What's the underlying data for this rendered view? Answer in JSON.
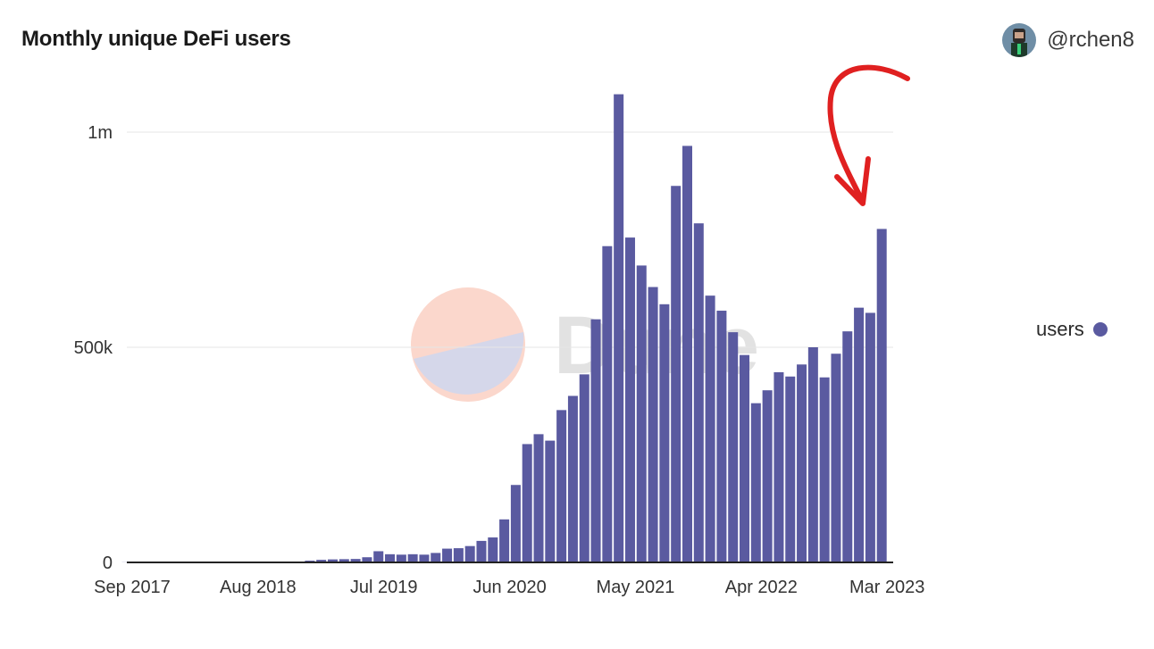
{
  "header": {
    "title": "Monthly unique DeFi users",
    "author_handle": "@rchen8",
    "author_icon": "avatar-icon"
  },
  "watermark": {
    "text": "Dune"
  },
  "legend": {
    "label": "users",
    "color": "#5a5aa0"
  },
  "colors": {
    "bar": "#5a5aa0",
    "annotation_arrow": "#e02020",
    "grid": "#e6e6e6"
  },
  "chart_data": {
    "type": "bar",
    "title": "Monthly unique DeFi users",
    "xlabel": "",
    "ylabel": "",
    "ylim": [
      0,
      1100000
    ],
    "grid": true,
    "legend_position": "right",
    "y_ticks": [
      {
        "value": 0,
        "label": "0"
      },
      {
        "value": 500000,
        "label": "500k"
      },
      {
        "value": 1000000,
        "label": "1m"
      }
    ],
    "x_tick_labels": [
      {
        "index": 0,
        "label": "Sep 2017"
      },
      {
        "index": 11,
        "label": "Aug 2018"
      },
      {
        "index": 22,
        "label": "Jul 2019"
      },
      {
        "index": 33,
        "label": "Jun 2020"
      },
      {
        "index": 44,
        "label": "May 2021"
      },
      {
        "index": 55,
        "label": "Apr 2022"
      },
      {
        "index": 66,
        "label": "Mar 2023"
      }
    ],
    "categories": [
      "Sep 2017",
      "Oct 2017",
      "Nov 2017",
      "Dec 2017",
      "Jan 2018",
      "Feb 2018",
      "Mar 2018",
      "Apr 2018",
      "May 2018",
      "Jun 2018",
      "Jul 2018",
      "Aug 2018",
      "Sep 2018",
      "Oct 2018",
      "Nov 2018",
      "Dec 2018",
      "Jan 2019",
      "Feb 2019",
      "Mar 2019",
      "Apr 2019",
      "May 2019",
      "Jun 2019",
      "Jul 2019",
      "Aug 2019",
      "Sep 2019",
      "Oct 2019",
      "Nov 2019",
      "Dec 2019",
      "Jan 2020",
      "Feb 2020",
      "Mar 2020",
      "Apr 2020",
      "May 2020",
      "Jun 2020",
      "Jul 2020",
      "Aug 2020",
      "Sep 2020",
      "Oct 2020",
      "Nov 2020",
      "Dec 2020",
      "Jan 2021",
      "Feb 2021",
      "Mar 2021",
      "Apr 2021",
      "May 2021",
      "Jun 2021",
      "Jul 2021",
      "Aug 2021",
      "Sep 2021",
      "Oct 2021",
      "Nov 2021",
      "Dec 2021",
      "Jan 2022",
      "Feb 2022",
      "Mar 2022",
      "Apr 2022",
      "May 2022",
      "Jun 2022",
      "Jul 2022",
      "Aug 2022",
      "Sep 2022",
      "Oct 2022",
      "Nov 2022",
      "Dec 2022",
      "Jan 2023",
      "Feb 2023",
      "Mar 2023",
      "Apr 2023"
    ],
    "series": [
      {
        "name": "users",
        "values": [
          300,
          500,
          800,
          1000,
          1500,
          1800,
          2000,
          1900,
          1800,
          1700,
          1600,
          1500,
          1600,
          1800,
          1900,
          2000,
          4000,
          6000,
          7000,
          7500,
          8000,
          12000,
          26000,
          19000,
          18000,
          19000,
          18000,
          22000,
          32000,
          33000,
          38000,
          50000,
          58000,
          100000,
          180000,
          275000,
          298000,
          283000,
          354000,
          387000,
          437000,
          565000,
          735000,
          1088000,
          755000,
          690000,
          640000,
          600000,
          875000,
          968000,
          788000,
          620000,
          585000,
          535000,
          482000,
          370000,
          400000,
          442000,
          432000,
          460000,
          500000,
          430000,
          485000,
          537000,
          592000,
          580000,
          775000,
          0
        ]
      }
    ],
    "annotation": "red arrow pointing to latest bar"
  }
}
